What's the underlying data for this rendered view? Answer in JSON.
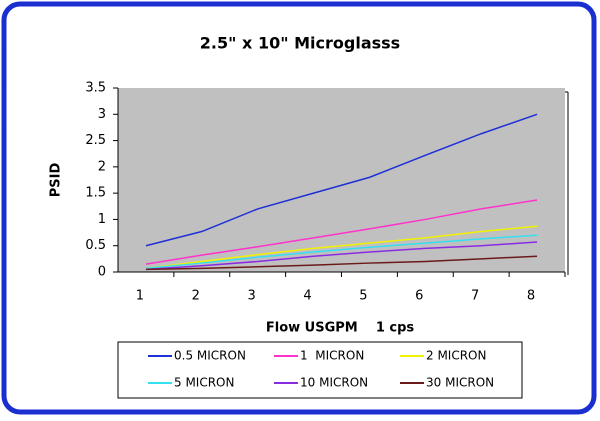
{
  "chart_data": {
    "type": "line",
    "title": "2.5\" x 10\" Microglasss",
    "x_label": "Flow USGPM    1 cps",
    "y_label": "PSID",
    "categories": [
      "1",
      "2",
      "3",
      "4",
      "5",
      "6",
      "7",
      "8"
    ],
    "series": [
      {
        "name": "0.5 MICRON",
        "color": "#1f2fd6",
        "values": [
          0.5,
          0.77,
          1.2,
          1.5,
          1.8,
          2.22,
          2.63,
          3.0
        ]
      },
      {
        "name": "1  MICRON",
        "color": "#ff33cc",
        "values": [
          0.15,
          0.32,
          0.48,
          0.65,
          0.82,
          1.0,
          1.2,
          1.37
        ]
      },
      {
        "name": "2 MICRON",
        "color": "#f2f200",
        "values": [
          0.07,
          0.2,
          0.33,
          0.45,
          0.55,
          0.65,
          0.77,
          0.87
        ]
      },
      {
        "name": "5 MICRON",
        "color": "#33e0f0",
        "values": [
          0.07,
          0.17,
          0.28,
          0.38,
          0.47,
          0.55,
          0.63,
          0.7
        ]
      },
      {
        "name": "10 MICRON",
        "color": "#8a2be2",
        "values": [
          0.05,
          0.12,
          0.2,
          0.3,
          0.38,
          0.45,
          0.5,
          0.57
        ]
      },
      {
        "name": "30 MICRON",
        "color": "#6b1a1a",
        "values": [
          0.05,
          0.07,
          0.1,
          0.13,
          0.17,
          0.2,
          0.25,
          0.3
        ]
      }
    ],
    "ylim": [
      0,
      3.5
    ],
    "yticks": [
      0,
      0.5,
      1,
      1.5,
      2,
      2.5,
      3,
      3.5
    ],
    "grid": false,
    "legend": "bottom"
  }
}
